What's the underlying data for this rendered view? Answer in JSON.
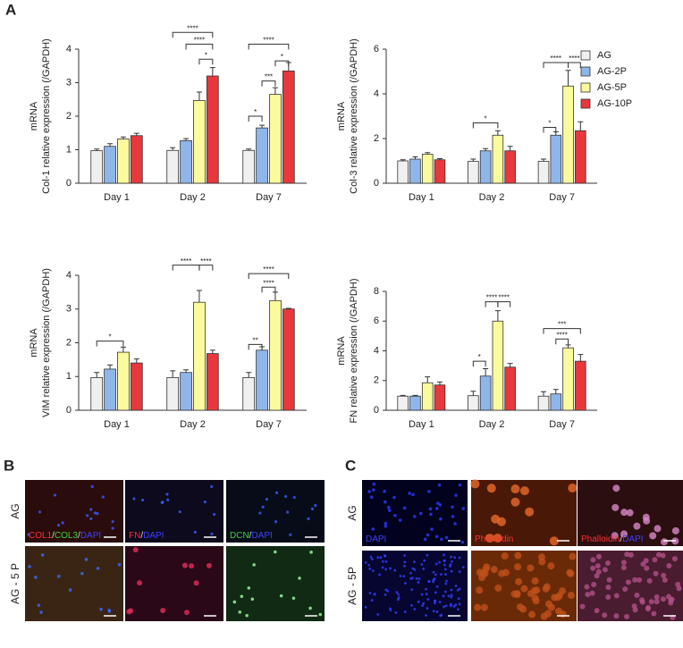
{
  "panel_labels": [
    "A",
    "B",
    "C"
  ],
  "legend": [
    {
      "name": "AG",
      "color": "#f0f0f0"
    },
    {
      "name": "AG-2P",
      "color": "#8fb6ea"
    },
    {
      "name": "AG-5P",
      "color": "#fbfa9c"
    },
    {
      "name": "AG-10P",
      "color": "#e8383c"
    }
  ],
  "chart_data": [
    {
      "type": "bar",
      "ylabel": [
        "mRNA",
        "Col-1 relative expression (/GAPDH)"
      ],
      "categories": [
        "Day 1",
        "Day 2",
        "Day 7"
      ],
      "ylim": [
        0,
        4
      ],
      "yticks": [
        0,
        1,
        2,
        3,
        4
      ],
      "series": [
        {
          "values": [
            0.97,
            0.98,
            0.98
          ],
          "errors": [
            0.05,
            0.08,
            0.04
          ]
        },
        {
          "values": [
            1.1,
            1.27,
            1.65
          ],
          "errors": [
            0.08,
            0.06,
            0.08
          ]
        },
        {
          "values": [
            1.32,
            2.47,
            2.65
          ],
          "errors": [
            0.06,
            0.25,
            0.2
          ]
        },
        {
          "values": [
            1.42,
            3.2,
            3.35
          ],
          "errors": [
            0.07,
            0.25,
            0.25
          ]
        }
      ],
      "annotations": [
        "****",
        "****",
        "*",
        "****",
        "*",
        "***",
        "*"
      ]
    },
    {
      "type": "bar",
      "ylabel": [
        "mRNA",
        "Col-3 relative expression (/GAPDH)"
      ],
      "categories": [
        "Day 1",
        "Day 2",
        "Day 7"
      ],
      "ylim": [
        0,
        6
      ],
      "yticks": [
        0,
        2,
        4,
        6
      ],
      "series": [
        {
          "values": [
            1.0,
            0.98,
            0.98
          ],
          "errors": [
            0.05,
            0.1,
            0.1
          ]
        },
        {
          "values": [
            1.08,
            1.45,
            2.15
          ],
          "errors": [
            0.1,
            0.1,
            0.15
          ]
        },
        {
          "values": [
            1.3,
            2.15,
            4.35
          ],
          "errors": [
            0.07,
            0.2,
            0.7
          ]
        },
        {
          "values": [
            1.05,
            1.45,
            2.35
          ],
          "errors": [
            0.05,
            0.2,
            0.4
          ]
        }
      ],
      "annotations": [
        "*",
        "*",
        "****",
        "****"
      ]
    },
    {
      "type": "bar",
      "ylabel": [
        "mRNA",
        "VIM relative expression (/GAPDH)"
      ],
      "categories": [
        "Day 1",
        "Day 2",
        "Day 7"
      ],
      "ylim": [
        0,
        4
      ],
      "yticks": [
        0,
        1,
        2,
        3,
        4
      ],
      "series": [
        {
          "values": [
            0.97,
            0.97,
            0.97
          ],
          "errors": [
            0.15,
            0.2,
            0.15
          ]
        },
        {
          "values": [
            1.22,
            1.12,
            1.78
          ],
          "errors": [
            0.12,
            0.08,
            0.1
          ]
        },
        {
          "values": [
            1.72,
            3.2,
            3.25
          ],
          "errors": [
            0.15,
            0.35,
            0.25
          ]
        },
        {
          "values": [
            1.4,
            1.68,
            3.0
          ],
          "errors": [
            0.12,
            0.1,
            0.02
          ]
        }
      ],
      "annotations": [
        "*",
        "****",
        "****",
        "**",
        "****",
        "****"
      ]
    },
    {
      "type": "bar",
      "ylabel": [
        "mRNA",
        "FN relative expression (/GAPDH)"
      ],
      "categories": [
        "Day 1",
        "Day 2",
        "Day 7"
      ],
      "ylim": [
        0,
        8
      ],
      "yticks": [
        0,
        2,
        4,
        6,
        8
      ],
      "series": [
        {
          "values": [
            0.95,
            0.98,
            0.95
          ],
          "errors": [
            0.05,
            0.3,
            0.3
          ]
        },
        {
          "values": [
            0.95,
            2.3,
            1.1
          ],
          "errors": [
            0.05,
            0.5,
            0.3
          ]
        },
        {
          "values": [
            1.85,
            6.0,
            4.2
          ],
          "errors": [
            0.4,
            0.7,
            0.2
          ]
        },
        {
          "values": [
            1.7,
            2.9,
            3.3
          ],
          "errors": [
            0.2,
            0.25,
            0.45
          ]
        }
      ],
      "annotations": [
        "*",
        "****",
        "****",
        "****",
        "***"
      ]
    }
  ],
  "panel_b": {
    "rows": [
      "AG",
      "AG - 5 P"
    ],
    "captions": [
      [
        "COL1",
        "/",
        "COL3",
        "/",
        "DAPI"
      ],
      [
        "FN",
        "/",
        "DAPI"
      ],
      [
        "DCN",
        "/",
        "DAPI"
      ]
    ]
  },
  "panel_c": {
    "rows": [
      "AG",
      "AG - 5P"
    ],
    "captions": [
      [
        "DAPI"
      ],
      [
        "Phalloidin"
      ],
      [
        "Phalloidin",
        "/",
        "DAPI"
      ]
    ]
  }
}
